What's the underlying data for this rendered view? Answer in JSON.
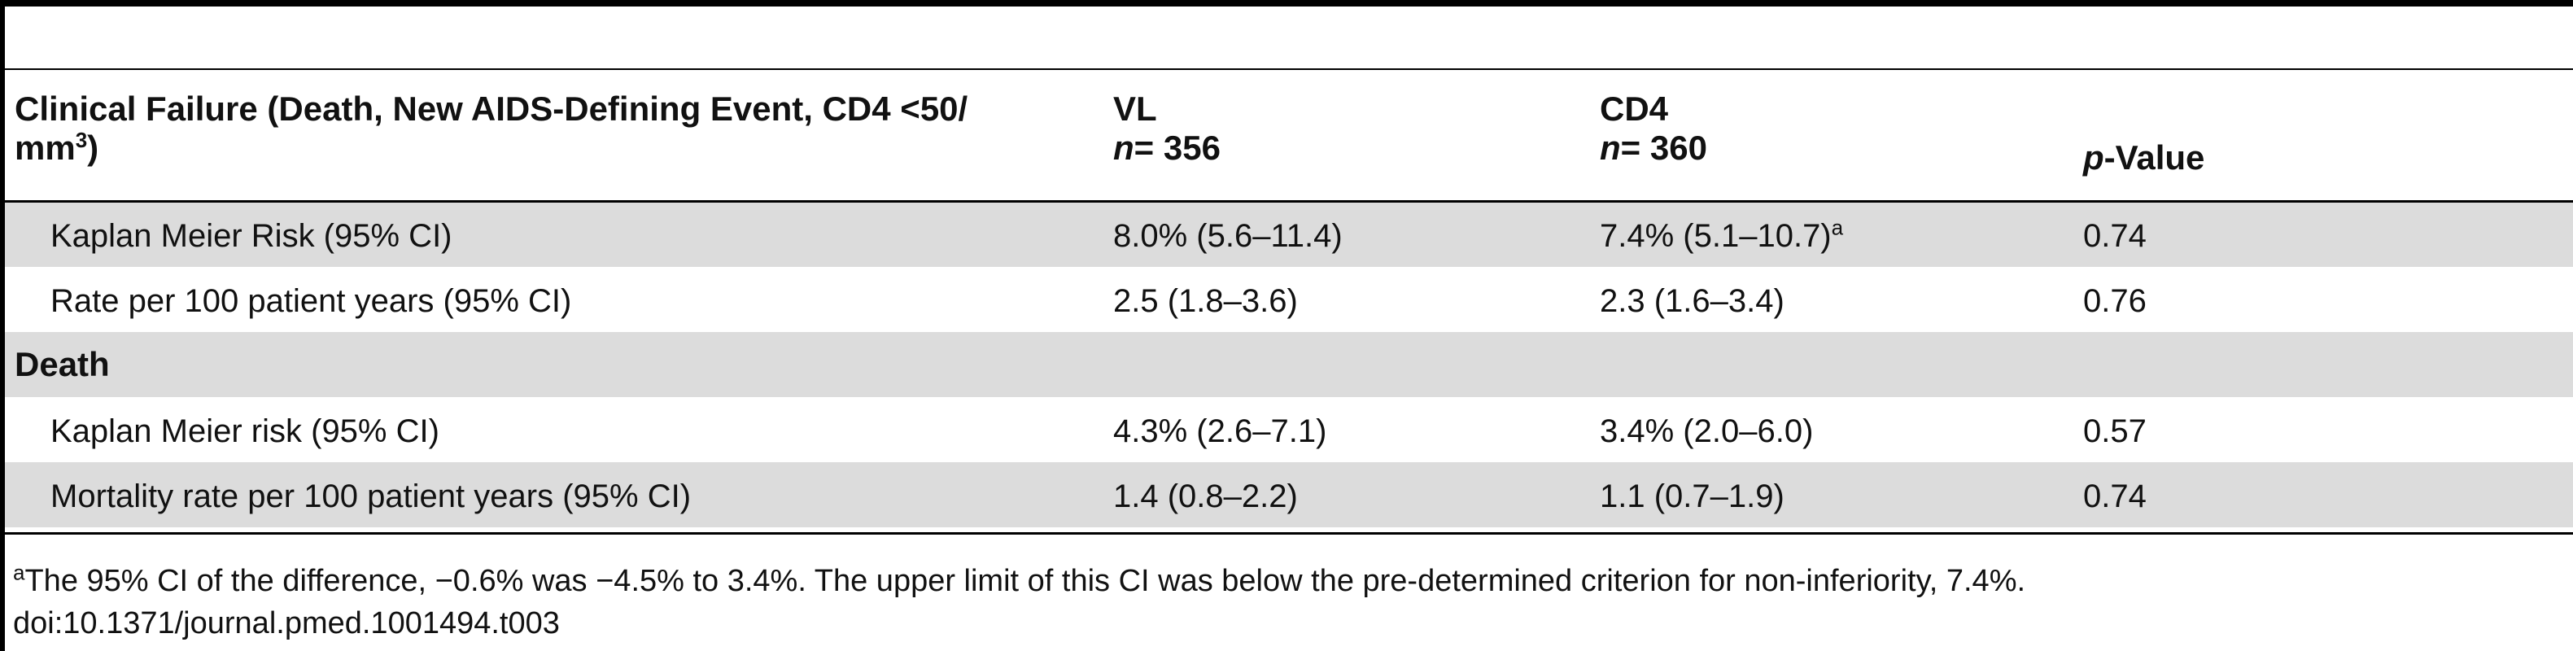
{
  "table": {
    "header": {
      "col1_line1": "Clinical Failure (Death, New AIDS-Defining Event, CD4 <50/",
      "col1_line2_base": "mm",
      "col1_line2_sup": "3",
      "col1_line2_tail": ")",
      "vl_label": "VL",
      "vl_n_label": "n",
      "vl_n_value": "= 356",
      "cd4_label": "CD4",
      "cd4_n_label": "n",
      "cd4_n_value": "= 360",
      "p_italic": "p",
      "p_rest": "-Value"
    },
    "rows": [
      {
        "label": "Kaplan Meier Risk (95% CI)",
        "vl": "8.0% (5.6–11.4)",
        "cd4": "7.4% (5.1–10.7)",
        "cd4_sup": "a",
        "p": "0.74"
      },
      {
        "label": "Rate per 100 patient years (95% CI)",
        "vl": "2.5 (1.8–3.6)",
        "cd4": "2.3 (1.6–3.4)",
        "p": "0.76"
      },
      {
        "section": "Death"
      },
      {
        "label": "Kaplan Meier risk (95% CI)",
        "vl": "4.3% (2.6–7.1)",
        "cd4": "3.4% (2.0–6.0)",
        "p": "0.57"
      },
      {
        "label": "Mortality rate per 100 patient years (95% CI)",
        "vl": "1.4 (0.8–2.2)",
        "cd4": "1.1 (0.7–1.9)",
        "p": "0.74"
      }
    ]
  },
  "footnote": {
    "marker": "a",
    "text": "The 95% CI of the difference, −0.6% was −4.5% to 3.4%. The upper limit of this CI was below the pre-determined criterion for non-inferiority, 7.4%.",
    "doi": "doi:10.1371/journal.pmed.1001494.t003"
  }
}
